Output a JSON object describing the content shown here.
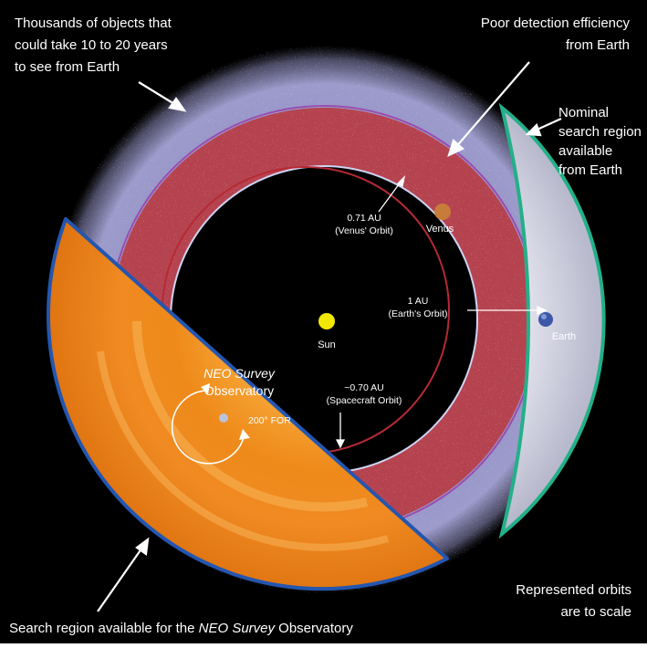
{
  "labels": {
    "thousands": [
      "Thousands of objects that",
      "could take 10 to 20 years",
      "to see from Earth"
    ],
    "poor_detection": [
      "Poor detection efficiency",
      "from Earth"
    ],
    "nominal_region": [
      "Nominal",
      "search region",
      "available",
      "from Earth"
    ],
    "venus_orbit": [
      "0.71 AU",
      "(Venus' Orbit)"
    ],
    "venus": "Venus",
    "earth_orbit": [
      "1 AU",
      "(Earth's Orbit)"
    ],
    "earth": "Earth",
    "sun": "Sun",
    "observatory": [
      "NEO Survey",
      "Observatory"
    ],
    "for": "200° FOR",
    "spacecraft_orbit": [
      "~0.70 AU",
      "(Spacecraft Orbit)"
    ],
    "search_region_prefix": "Search region available for the ",
    "search_region_italic": "NEO Survey",
    "search_region_suffix": " Observatory",
    "scale_note": [
      "Represented orbits",
      "are to scale"
    ]
  },
  "colors": {
    "background": "#000000",
    "outer_band": "#8f8fc4",
    "middle_band": "#b5434f",
    "orange_sector": "#ee8a1a",
    "earth_wedge": "#cfd2de",
    "wedge_border": "#23b088",
    "sector_border": "#2456b0",
    "sun": "#f3e800",
    "venus": "#c77c3a",
    "venus_orbit": "#b52a35",
    "earth_orbit": "#cfd4f4"
  }
}
